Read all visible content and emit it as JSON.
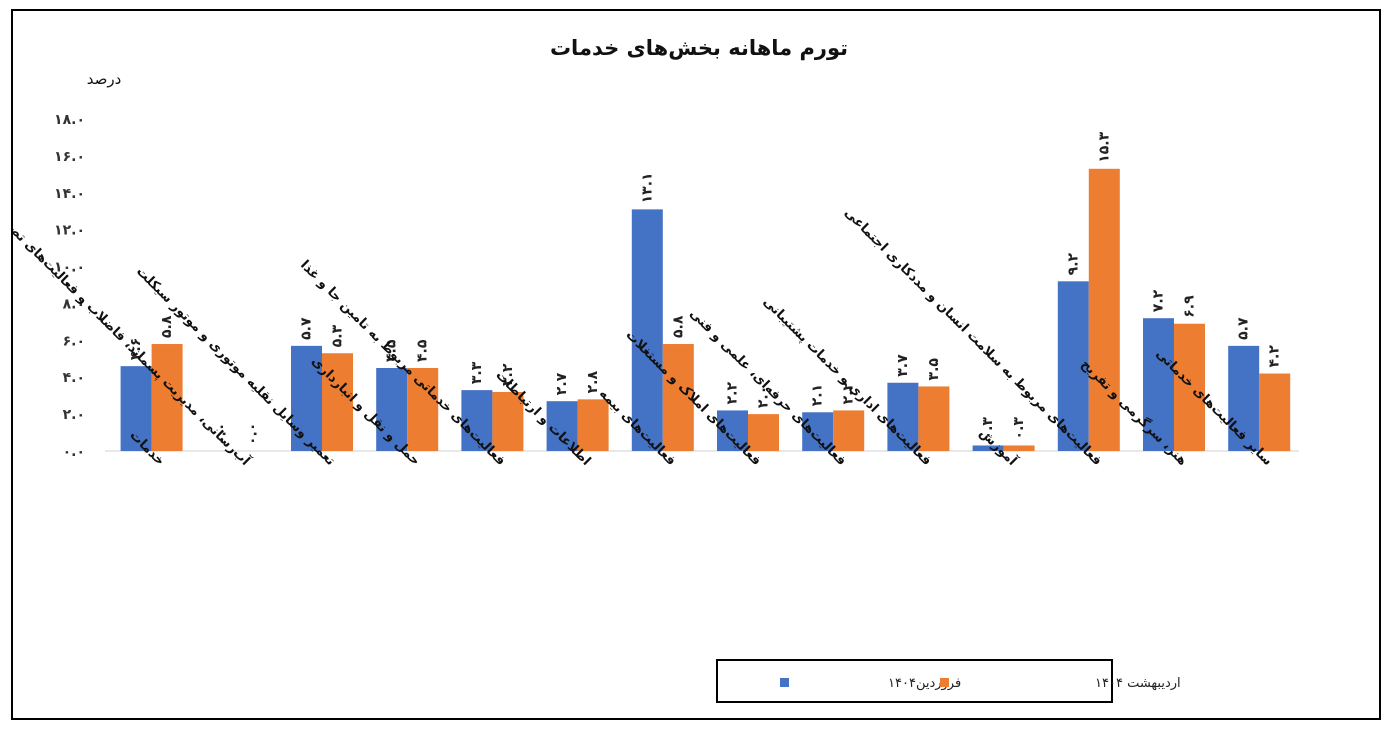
{
  "chart_data": {
    "type": "bar",
    "title": "تورم ماهانه بخش‌های خدمات",
    "ylabel": "درصد",
    "ylim": [
      0,
      18
    ],
    "ytick_labels": [
      "۰.۰",
      "۲.۰",
      "۴.۰",
      "۶.۰",
      "۸.۰",
      "۱۰.۰",
      "۱۲.۰",
      "۱۴.۰",
      "۱۶.۰",
      "۱۸.۰"
    ],
    "grid": false,
    "legend_position": "bottom",
    "categories": [
      "خدمات",
      "آب‌رسانی، مدیریت پسماند، فاضلاب و فعالیت‌های تصفیه",
      "تعمیر وسایل نقلیه موتوری و موتور سیکلت",
      "حمل و نقل و انبارداری",
      "فعالیت‌های خدماتی مربوط به تامین جا و غذا",
      "اطلاعات و ارتباطات",
      "فعالیت‌های بیمه",
      "فعالیت‌های املاک و مستغلات",
      "فعالیت‌های حرفه‌ای، علمی و فنی",
      "فعالیت‌های اداری و خدمات پشتیبانی",
      "آموزش",
      "فعالیت‌های مربوط به سلامت انسان و مددکاری اجتماعی",
      "هنر، سرگرمی و تفریح",
      "سایر فعالیت‌های خدماتی"
    ],
    "series": [
      {
        "name": "فروردین۱۴۰۴",
        "color": "#4472C4",
        "values": [
          4.6,
          0.0,
          5.7,
          4.5,
          3.3,
          2.7,
          13.1,
          2.2,
          2.1,
          3.7,
          0.3,
          9.2,
          7.2,
          5.7
        ],
        "labels": [
          "۴.۶",
          "۰.۰",
          "۵.۷",
          "۴.۵",
          "۳.۳",
          "۲.۷",
          "۱۳.۱",
          "۲.۲",
          "۲.۱",
          "۳.۷",
          "۰.۳",
          "۹.۲",
          "۷.۲",
          "۵.۷"
        ]
      },
      {
        "name": "اردیبهشت ۱۴۰۴",
        "color": "#ED7D31",
        "values": [
          5.8,
          0.0,
          5.3,
          4.5,
          3.2,
          2.8,
          5.8,
          2.0,
          2.2,
          3.5,
          0.3,
          15.3,
          6.9,
          4.2
        ],
        "labels": [
          "۵.۸",
          "۰.۰",
          "۵.۳",
          "۴.۵",
          "۳.۲",
          "۲.۸",
          "۵.۸",
          "۲.۰",
          "۲.۲",
          "۳.۵",
          "۰.۳",
          "۱۵.۳",
          "۶.۹",
          "۴.۲"
        ]
      }
    ]
  }
}
